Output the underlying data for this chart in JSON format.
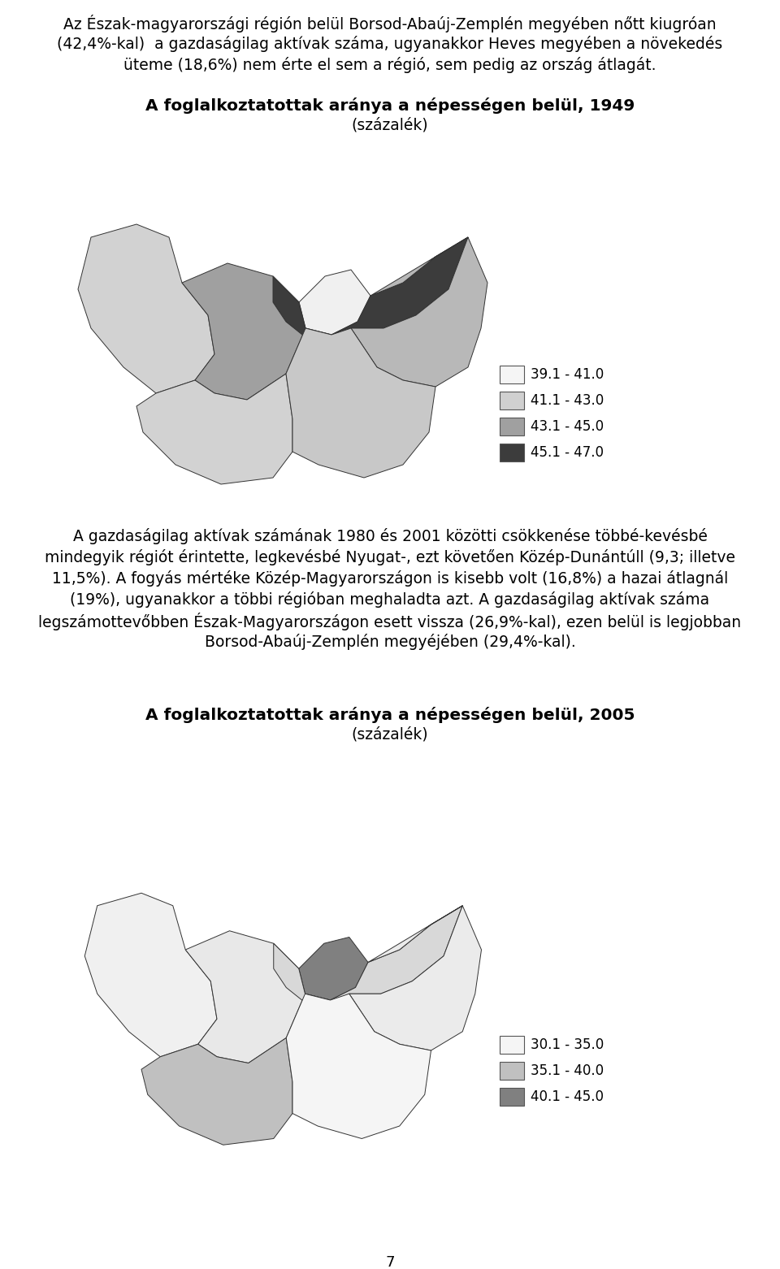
{
  "title1": "A foglalkoztatottak aránya a népességen belül, 1949",
  "subtitle1": "(százalék)",
  "title2": "A foglalkoztatottak aránya a népességen belül, 2005",
  "subtitle2": "(százalék)",
  "para1_lines": [
    "Az Észak-magyarországi régión belül Borsod-Abaúj-Zemplén megyében nőtt kiugróan",
    "(42,4%-kal)  a gazdaságilag aktívak száma, ugyanakkor Heves megyében a növekedés",
    "üteme (18,6%) nem érte el sem a régió, sem pedig az ország átlagát."
  ],
  "para2_lines": [
    "A gazdaságilag aktívak számának 1980 és 2001 közötti csökkenése többé-kevésbé",
    "mindegyik régiót érintette, legkevésbé Nyugat-, ezt követően Közép-Dunántúll (9,3; illetve",
    "11,5%). A fogyás mértéke Közép-Magyarországon is kisebb volt (16,8%) a hazai átlagnál",
    "(19%), ugyanakkor a többi régióban meghaladta azt. A gazdaságilag aktívak száma",
    "legszámottevőbben Észak-Magyarországon esett vissza (26,9%-kal), ezen belül is legjobban",
    "Borsod-Abaúj-Zemplén megyéjében (29,4%-kal)."
  ],
  "page_num": "7",
  "legend1_labels": [
    "39.1 - 41.0",
    "41.1 - 43.0",
    "43.1 - 45.0",
    "45.1 - 47.0"
  ],
  "legend1_colors": [
    "#f5f5f5",
    "#d0d0d0",
    "#a0a0a0",
    "#3c3c3c"
  ],
  "legend2_labels": [
    "30.1 - 35.0",
    "35.1 - 40.0",
    "40.1 - 45.0"
  ],
  "legend2_colors": [
    "#f5f5f5",
    "#c0c0c0",
    "#808080"
  ],
  "bg_color": "#ffffff",
  "text_color": "#000000"
}
